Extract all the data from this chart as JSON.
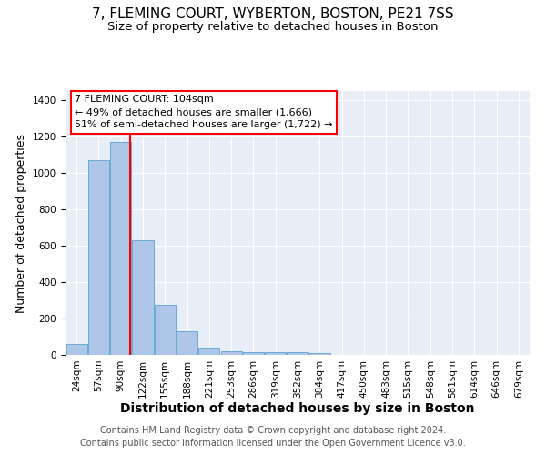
{
  "title": "7, FLEMING COURT, WYBERTON, BOSTON, PE21 7SS",
  "subtitle": "Size of property relative to detached houses in Boston",
  "xlabel": "Distribution of detached houses by size in Boston",
  "ylabel": "Number of detached properties",
  "categories": [
    "24sqm",
    "57sqm",
    "90sqm",
    "122sqm",
    "155sqm",
    "188sqm",
    "221sqm",
    "253sqm",
    "286sqm",
    "319sqm",
    "352sqm",
    "384sqm",
    "417sqm",
    "450sqm",
    "483sqm",
    "515sqm",
    "548sqm",
    "581sqm",
    "614sqm",
    "646sqm",
    "679sqm"
  ],
  "bar_values": [
    60,
    1070,
    1170,
    630,
    275,
    130,
    40,
    20,
    15,
    15,
    15,
    10,
    0,
    0,
    0,
    0,
    0,
    0,
    0,
    0,
    0
  ],
  "bar_color": "#aec6e8",
  "bar_edge_color": "#6aaad4",
  "vline_color": "red",
  "ylim": [
    0,
    1450
  ],
  "annotation_text": "7 FLEMING COURT: 104sqm\n← 49% of detached houses are smaller (1,666)\n51% of semi-detached houses are larger (1,722) →",
  "annotation_box_color": "white",
  "annotation_box_edge_color": "red",
  "footnote": "Contains HM Land Registry data © Crown copyright and database right 2024.\nContains public sector information licensed under the Open Government Licence v3.0.",
  "title_fontsize": 11,
  "subtitle_fontsize": 9.5,
  "xlabel_fontsize": 10,
  "ylabel_fontsize": 9,
  "tick_fontsize": 7.5,
  "annotation_fontsize": 8,
  "footnote_fontsize": 7,
  "background_color": "#e8eef8"
}
